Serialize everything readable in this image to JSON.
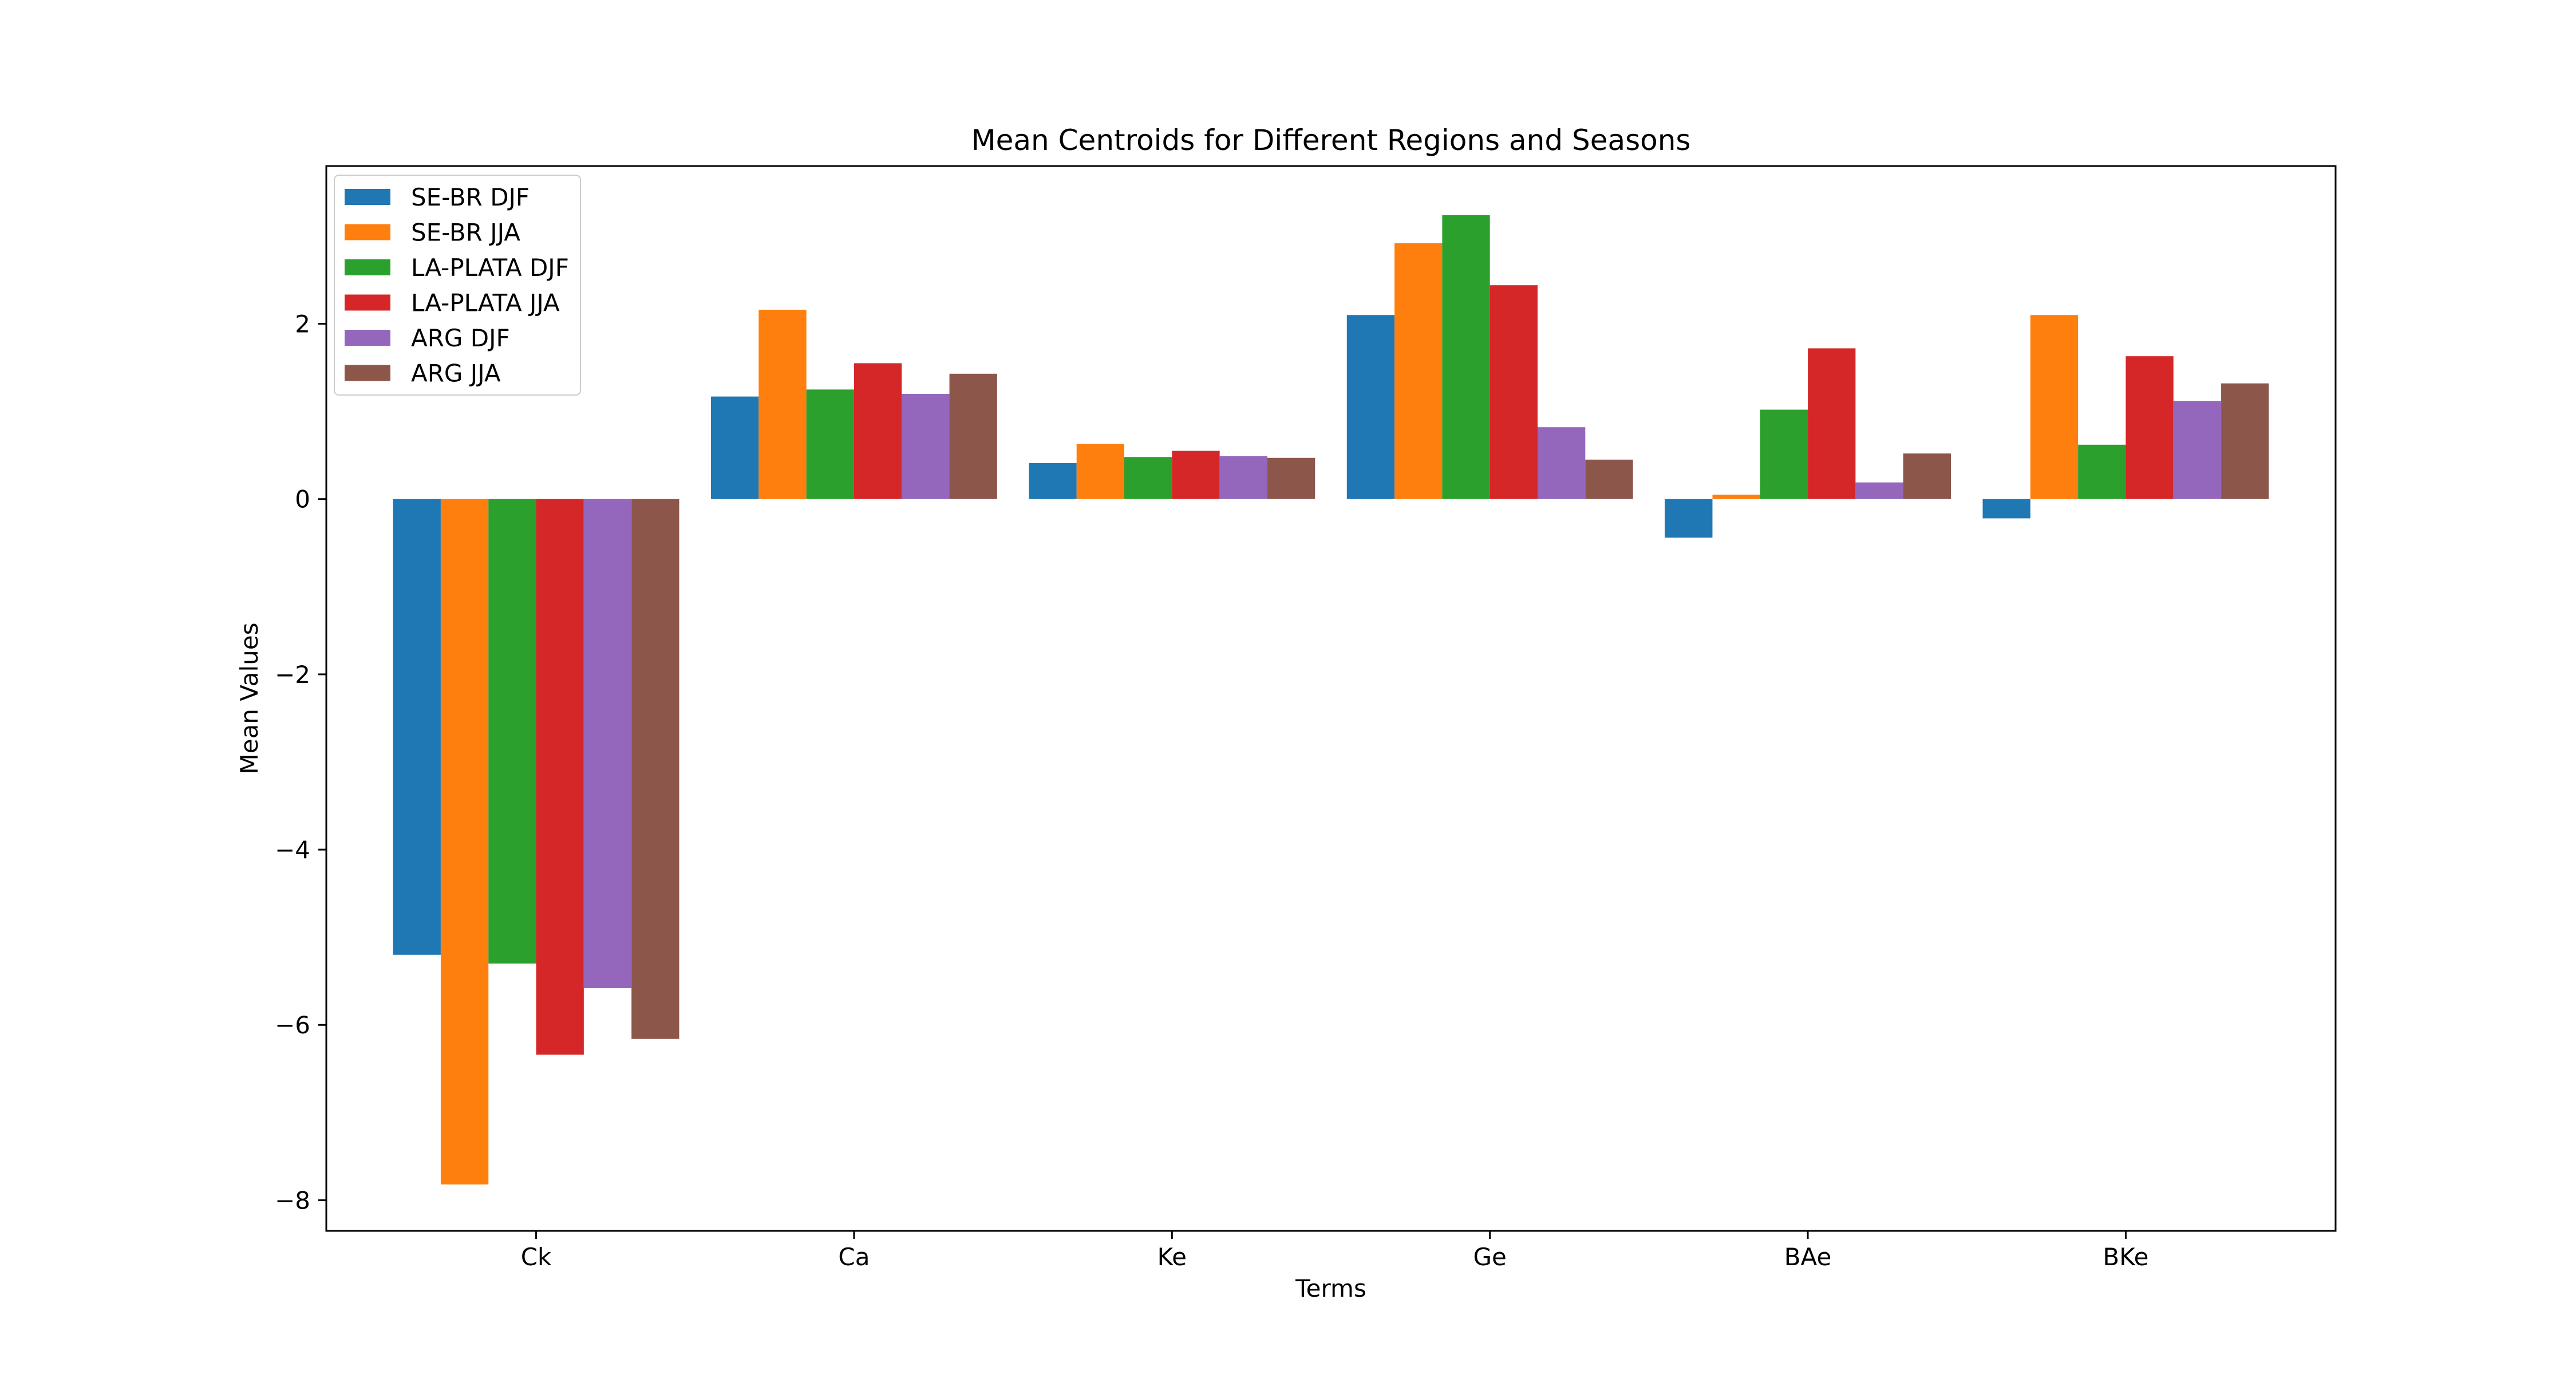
{
  "chart_data": {
    "type": "bar",
    "title": "Mean Centroids for Different Regions and Seasons",
    "xlabel": "Terms",
    "ylabel": "Mean Values",
    "categories": [
      "Ck",
      "Ca",
      "Ke",
      "Ge",
      "BAe",
      "BKe"
    ],
    "ylim": [
      -8.35,
      3.8
    ],
    "yticks": [
      2,
      0,
      -2,
      -4,
      -6,
      -8
    ],
    "ytick_labels": [
      "2",
      "0",
      "−2",
      "−4",
      "−6",
      "−8"
    ],
    "grid": false,
    "legend_position": "top-left",
    "series": [
      {
        "name": "SE-BR DJF",
        "color": "#1f77b4",
        "values": [
          -5.2,
          1.17,
          0.41,
          2.1,
          -0.44,
          -0.22
        ]
      },
      {
        "name": "SE-BR JJA",
        "color": "#ff7f0e",
        "values": [
          -7.82,
          2.16,
          0.63,
          2.92,
          0.05,
          2.1
        ]
      },
      {
        "name": "LA-PLATA DJF",
        "color": "#2ca02c",
        "values": [
          -5.3,
          1.25,
          0.48,
          3.24,
          1.02,
          0.62
        ]
      },
      {
        "name": "LA-PLATA JJA",
        "color": "#d62728",
        "values": [
          -6.34,
          1.55,
          0.55,
          2.44,
          1.72,
          1.63
        ]
      },
      {
        "name": "ARG DJF",
        "color": "#9467bd",
        "values": [
          -5.58,
          1.2,
          0.49,
          0.82,
          0.19,
          1.12
        ]
      },
      {
        "name": "ARG JJA",
        "color": "#8c564b",
        "values": [
          -6.16,
          1.43,
          0.47,
          0.45,
          0.52,
          1.32
        ]
      }
    ]
  }
}
